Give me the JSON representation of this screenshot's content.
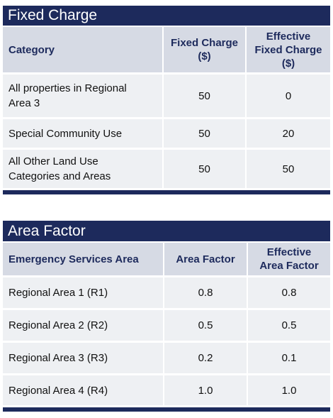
{
  "fixed_charge": {
    "title": "Fixed Charge",
    "headers": [
      "Category",
      "Fixed Charge\n($)",
      "Effective\nFixed Charge\n($)"
    ],
    "rows": [
      [
        "All properties in Regional\nArea 3",
        "50",
        "0"
      ],
      [
        "Special Community Use",
        "50",
        "20"
      ],
      [
        "All Other Land Use\nCategories and Areas",
        "50",
        "50"
      ]
    ]
  },
  "area_factor": {
    "title": "Area Factor",
    "headers": [
      "Emergency Services Area",
      "Area Factor",
      "Effective\nArea Factor"
    ],
    "rows": [
      [
        "Regional Area 1 (R1)",
        "0.8",
        "0.8"
      ],
      [
        "Regional Area 2 (R2)",
        "0.5",
        "0.5"
      ],
      [
        "Regional Area 3 (R3)",
        "0.2",
        "0.1"
      ],
      [
        "Regional Area 4 (R4)",
        "1.0",
        "1.0"
      ]
    ]
  },
  "colors": {
    "title_bar": "#1d2a5c",
    "header_bg": "#d6dae4",
    "cell_bg": "#eef0f3",
    "header_text": "#1d2a5c"
  }
}
